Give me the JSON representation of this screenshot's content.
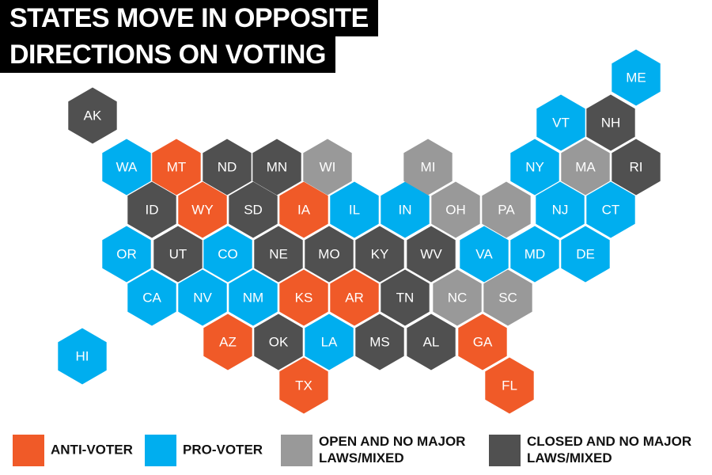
{
  "title": {
    "lines": [
      "STATES MOVE IN OPPOSITE",
      "DIRECTIONS ON VOTING"
    ]
  },
  "groups": [
    {
      "label": [
        "ANTI-VOTER"
      ],
      "color": "#f05a28",
      "states": [
        "MT",
        "WY",
        "IA",
        "KS",
        "AR",
        "AZ",
        "TX",
        "GA",
        "FL"
      ]
    },
    {
      "label": [
        "PRO-VOTER"
      ],
      "color": "#00aeef",
      "states": [
        "ME",
        "VT",
        "WA",
        "NY",
        "IL",
        "IN",
        "NJ",
        "CT",
        "OR",
        "CO",
        "VA",
        "MD",
        "DE",
        "CA",
        "NV",
        "NM",
        "LA",
        "HI"
      ]
    },
    {
      "label": [
        "OPEN AND NO MAJOR",
        "LAWS/MIXED"
      ],
      "color": "#999999",
      "states": [
        "WI",
        "MI",
        "MA",
        "OH",
        "PA",
        "NC",
        "SC"
      ]
    },
    {
      "label": [
        "CLOSED AND NO MAJOR",
        "LAWS/MIXED"
      ],
      "color": "#505050",
      "states": [
        "AK",
        "NH",
        "RI",
        "ND",
        "MN",
        "ID",
        "SD",
        "UT",
        "NE",
        "MO",
        "KY",
        "WV",
        "TN",
        "OK",
        "MS",
        "AL"
      ]
    }
  ]
}
